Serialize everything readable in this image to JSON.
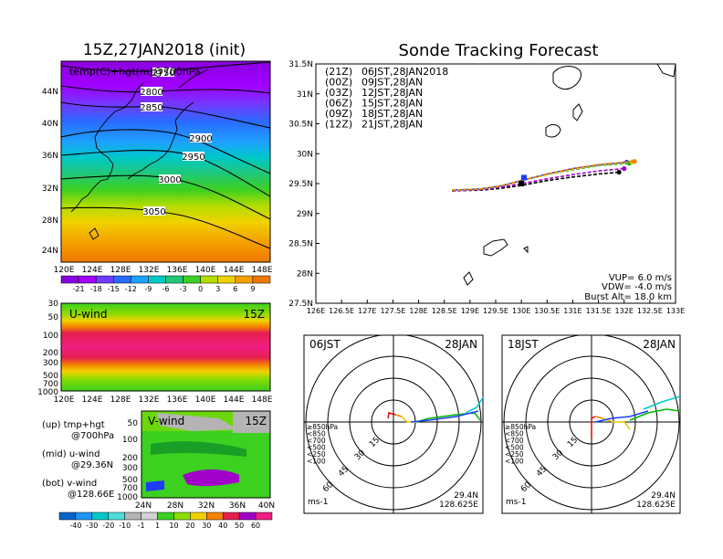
{
  "left": {
    "title": "15Z,27JAN2018 (init)",
    "map_label": "temp(C)+hgt(m)@700hPa",
    "map_x_ticks": [
      "120E",
      "124E",
      "128E",
      "132E",
      "136E",
      "140E",
      "144E",
      "148E"
    ],
    "map_y_ticks": [
      "24N",
      "28N",
      "32N",
      "36N",
      "40N",
      "44N"
    ],
    "contours": [
      "2750",
      "2800",
      "2850",
      "2900",
      "2950",
      "3000",
      "3050"
    ],
    "temp_colorbar": [
      "-21",
      "-18",
      "-15",
      "-12",
      "-9",
      "-6",
      "-3",
      "0",
      "3",
      "6",
      "9"
    ],
    "u_label": "U-wind",
    "u_time": "15Z",
    "u_y_ticks": [
      "30",
      "50",
      "100",
      "200",
      "300",
      "500",
      "700",
      "1000"
    ],
    "u_x_ticks": [
      "120E",
      "124E",
      "128E",
      "132E",
      "136E",
      "140E",
      "144E",
      "148E"
    ],
    "v_label": "V-wind",
    "v_time": "15Z",
    "v_y_ticks": [
      "50",
      "100",
      "200",
      "300",
      "500",
      "700",
      "1000"
    ],
    "v_x_ticks": [
      "24N",
      "28N",
      "32N",
      "36N",
      "40N"
    ],
    "wind_colorbar": [
      "-40",
      "-30",
      "-20",
      "-10",
      "-1",
      "1",
      "10",
      "20",
      "30",
      "40",
      "50",
      "60"
    ],
    "legend_up_a": "(up) tmp+hgt",
    "legend_up_b": "@700hPa",
    "legend_mid_a": "(mid) u-wind",
    "legend_mid_b": "@29.36N",
    "legend_bot_a": "(bot) v-wind",
    "legend_bot_b": "@128.66E"
  },
  "right": {
    "title": "Sonde Tracking Forecast",
    "legend": [
      {
        "code": "(21Z)",
        "time": "06JST,28JAN2018",
        "color": "#000000"
      },
      {
        "code": "(00Z)",
        "time": "09JST,28JAN",
        "color": "#a000c8"
      },
      {
        "code": "(03Z)",
        "time": "12JST,28JAN",
        "color": "#1e3cff"
      },
      {
        "code": "(06Z)",
        "time": "15JST,28JAN",
        "color": "#00b400"
      },
      {
        "code": "(09Z)",
        "time": "18JST,28JAN",
        "color": "#e6c800"
      },
      {
        "code": "(12Z)",
        "time": "21JST,28JAN",
        "color": "#f08200"
      }
    ],
    "params_vup": "VUP= 6.0 m/s",
    "params_vdw": "VDW= -4.0 m/s",
    "params_burst": "Burst Alt= 18.0 km"
  },
  "hodo1": {
    "time": "06JST",
    "date": "28JAN",
    "rings": [
      "15",
      "30",
      "45",
      "60"
    ],
    "unit": "ms-1",
    "lat": "29.4N",
    "lon": "128.625E"
  },
  "hodo2": {
    "time": "18JST",
    "date": "28JAN",
    "rings": [
      "15",
      "30",
      "45",
      "60"
    ],
    "unit": "ms-1",
    "lat": "29.4N",
    "lon": "128.625E"
  },
  "hodo_levels": [
    {
      "label": "≥850hPa",
      "color": "#e60000"
    },
    {
      "label": "<850",
      "color": "#f08200"
    },
    {
      "label": "<700",
      "color": "#e6c800"
    },
    {
      "label": "<500",
      "color": "#00b400"
    },
    {
      "label": "<250",
      "color": "#00c8c8"
    },
    {
      "label": "<100",
      "color": "#1e3cff"
    }
  ],
  "chart_data": [
    {
      "type": "line",
      "title": "Sonde Tracking Forecast",
      "xlabel": "",
      "ylabel": "",
      "xlim": [
        126,
        133
      ],
      "ylim": [
        27.5,
        31.5
      ],
      "x_ticks": [
        "126E",
        "126.5E",
        "127E",
        "127.5E",
        "128E",
        "128.5E",
        "129E",
        "129.5E",
        "130E",
        "130.5E",
        "131E",
        "131.5E",
        "132E",
        "132.5E",
        "133E"
      ],
      "y_ticks": [
        "27.5N",
        "28N",
        "28.5N",
        "29N",
        "29.5N",
        "30N",
        "30.5N",
        "31N",
        "31.5N"
      ],
      "series": [
        {
          "name": "(21Z) 06JST,28JAN2018",
          "color": "#000000",
          "dash": true,
          "x": [
            128.65,
            129.2,
            129.6,
            130.0,
            130.5,
            131.0,
            131.5,
            131.9
          ],
          "y": [
            29.38,
            29.39,
            29.42,
            29.47,
            29.55,
            29.61,
            29.66,
            29.69
          ]
        },
        {
          "name": "(00Z) 09JST,28JAN",
          "color": "#a000c8",
          "dash": true,
          "x": [
            128.65,
            129.2,
            129.6,
            130.0,
            130.5,
            131.0,
            131.5,
            132.0
          ],
          "y": [
            29.38,
            29.4,
            29.44,
            29.5,
            29.58,
            29.65,
            29.71,
            29.75
          ]
        },
        {
          "name": "(03Z) 12JST,28JAN",
          "color": "#1e3cff",
          "dash": false,
          "x": [
            128.65,
            129.2,
            129.6,
            130.0,
            130.5,
            131.0,
            131.5,
            132.05
          ],
          "y": [
            29.39,
            29.41,
            29.46,
            29.55,
            29.66,
            29.75,
            29.81,
            29.86
          ]
        },
        {
          "name": "(06Z) 15JST,28JAN",
          "color": "#00b400",
          "dash": true,
          "x": [
            128.65,
            129.2,
            129.6,
            130.0,
            130.5,
            131.0,
            131.5,
            132.1
          ],
          "y": [
            29.39,
            29.41,
            29.46,
            29.55,
            29.65,
            29.73,
            29.8,
            29.84
          ]
        },
        {
          "name": "(09Z) 18JST,28JAN",
          "color": "#e6c800",
          "dash": true,
          "x": [
            128.65,
            129.2,
            129.6,
            130.0,
            130.5,
            131.0,
            131.5,
            132.15
          ],
          "y": [
            29.39,
            29.41,
            29.46,
            29.55,
            29.65,
            29.74,
            29.81,
            29.86
          ]
        },
        {
          "name": "(12Z) 21JST,28JAN",
          "color": "#f08200",
          "dash": true,
          "x": [
            128.65,
            129.2,
            129.6,
            130.0,
            130.5,
            131.0,
            131.5,
            132.2
          ],
          "y": [
            29.39,
            29.41,
            29.46,
            29.55,
            29.66,
            29.75,
            29.82,
            29.87
          ]
        }
      ]
    },
    {
      "type": "heatmap",
      "title": "15Z,27JAN2018 (init)",
      "field": "temp(C)+hgt(m)@700hPa",
      "xlim": [
        120,
        149
      ],
      "ylim": [
        22,
        48
      ],
      "colorbar": [
        -21,
        -18,
        -15,
        -12,
        -9,
        -6,
        -3,
        0,
        3,
        6,
        9
      ],
      "contour_levels": [
        2750,
        2800,
        2850,
        2900,
        2950,
        3000,
        3050
      ]
    }
  ]
}
